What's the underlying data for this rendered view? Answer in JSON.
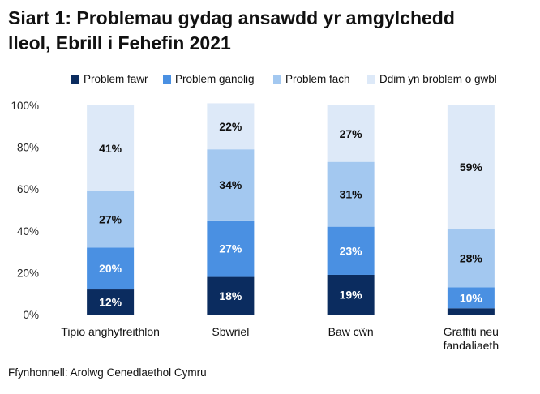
{
  "title_lines": [
    "Siart 1: Problemau gydag ansawdd yr amgylchedd",
    "lleol, Ebrill i Fehefin 2021"
  ],
  "source": "Ffynhonnell: Arolwg Cenedlaethol Cymru",
  "colors": {
    "Problem fawr": "#0b2c5f",
    "Problem ganolig": "#4a90e2",
    "Problem fach": "#a3c8f0",
    "Ddim yn broblem o gwbl": "#dde9f8"
  },
  "chart_data": {
    "type": "bar",
    "stacked": true,
    "title": "Siart 1: Problemau gydag ansawdd yr amgylchedd lleol, Ebrill i Fehefin 2021",
    "categories": [
      [
        "Tipio anghyfreithlon"
      ],
      [
        "Sbwriel"
      ],
      [
        "Baw cŵn"
      ],
      [
        "Graffiti neu",
        "fandaliaeth"
      ]
    ],
    "series": [
      {
        "name": "Problem fawr",
        "values": [
          12,
          18,
          19,
          3
        ],
        "labels": [
          "12%",
          "18%",
          "19%",
          ""
        ]
      },
      {
        "name": "Problem ganolig",
        "values": [
          20,
          27,
          23,
          10
        ],
        "labels": [
          "20%",
          "27%",
          "23%",
          "10%"
        ]
      },
      {
        "name": "Problem fach",
        "values": [
          27,
          34,
          31,
          28
        ],
        "labels": [
          "27%",
          "34%",
          "31%",
          "28%"
        ]
      },
      {
        "name": "Ddim yn broblem o gwbl",
        "values": [
          41,
          22,
          27,
          59
        ],
        "labels": [
          "41%",
          "22%",
          "27%",
          "59%"
        ]
      }
    ],
    "ylim": [
      0,
      100
    ],
    "yticks": [
      0,
      20,
      40,
      60,
      80,
      100
    ],
    "ytick_labels": [
      "0%",
      "20%",
      "40%",
      "60%",
      "80%",
      "100%"
    ],
    "xlabel": "",
    "ylabel": "",
    "legend_position": "top"
  }
}
